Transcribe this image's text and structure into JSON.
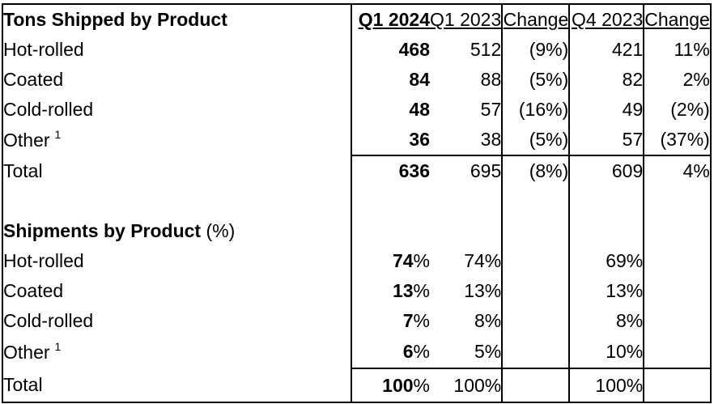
{
  "table": {
    "title": "Tons Shipped by Product",
    "headers": {
      "q1_2024": "Q1 2024",
      "q1_2023": "Q1 2023",
      "change_yoy": "Change",
      "q4_2023": "Q4 2023",
      "change_seq": "Change"
    },
    "tons": {
      "rows": [
        {
          "label": "Hot-rolled",
          "sup": "",
          "q1_2024": "468",
          "q1_2024_suffix": "",
          "q1_2023": "512",
          "change_yoy": "(9%)",
          "q4_2023": "421",
          "change_seq": "11%"
        },
        {
          "label": "Coated",
          "sup": "",
          "q1_2024": "84",
          "q1_2024_suffix": "",
          "q1_2023": "88",
          "change_yoy": "(5%)",
          "q4_2023": "82",
          "change_seq": "2%"
        },
        {
          "label": "Cold-rolled",
          "sup": "",
          "q1_2024": "48",
          "q1_2024_suffix": "",
          "q1_2023": "57",
          "change_yoy": "(16%)",
          "q4_2023": "49",
          "change_seq": "(2%)"
        },
        {
          "label": "Other",
          "sup": "1",
          "q1_2024": "36",
          "q1_2024_suffix": "",
          "q1_2023": "38",
          "change_yoy": "(5%)",
          "q4_2023": "57",
          "change_seq": "(37%)"
        }
      ],
      "total": {
        "label": "Total",
        "q1_2024": "636",
        "q1_2024_suffix": "",
        "q1_2023": "695",
        "change_yoy": "(8%)",
        "q4_2023": "609",
        "change_seq": "4%"
      }
    },
    "pct": {
      "title_bold": "Shipments by Product",
      "title_normal": "(%)",
      "rows": [
        {
          "label": "Hot-rolled",
          "sup": "",
          "q1_2024": "74",
          "q1_2024_suffix": "%",
          "q1_2023": "74%",
          "change_yoy": "",
          "q4_2023": "69%",
          "change_seq": ""
        },
        {
          "label": "Coated",
          "sup": "",
          "q1_2024": "13",
          "q1_2024_suffix": "%",
          "q1_2023": "13%",
          "change_yoy": "",
          "q4_2023": "13%",
          "change_seq": ""
        },
        {
          "label": "Cold-rolled",
          "sup": "",
          "q1_2024": "7",
          "q1_2024_suffix": "%",
          "q1_2023": "8%",
          "change_yoy": "",
          "q4_2023": "8%",
          "change_seq": ""
        },
        {
          "label": "Other",
          "sup": "1",
          "q1_2024": "6",
          "q1_2024_suffix": "%",
          "q1_2023": "5%",
          "change_yoy": "",
          "q4_2023": "10%",
          "change_seq": ""
        }
      ],
      "total": {
        "label": "Total",
        "q1_2024": "100",
        "q1_2024_suffix": "%",
        "q1_2023": "100%",
        "change_yoy": "",
        "q4_2023": "100%",
        "change_seq": ""
      }
    }
  }
}
